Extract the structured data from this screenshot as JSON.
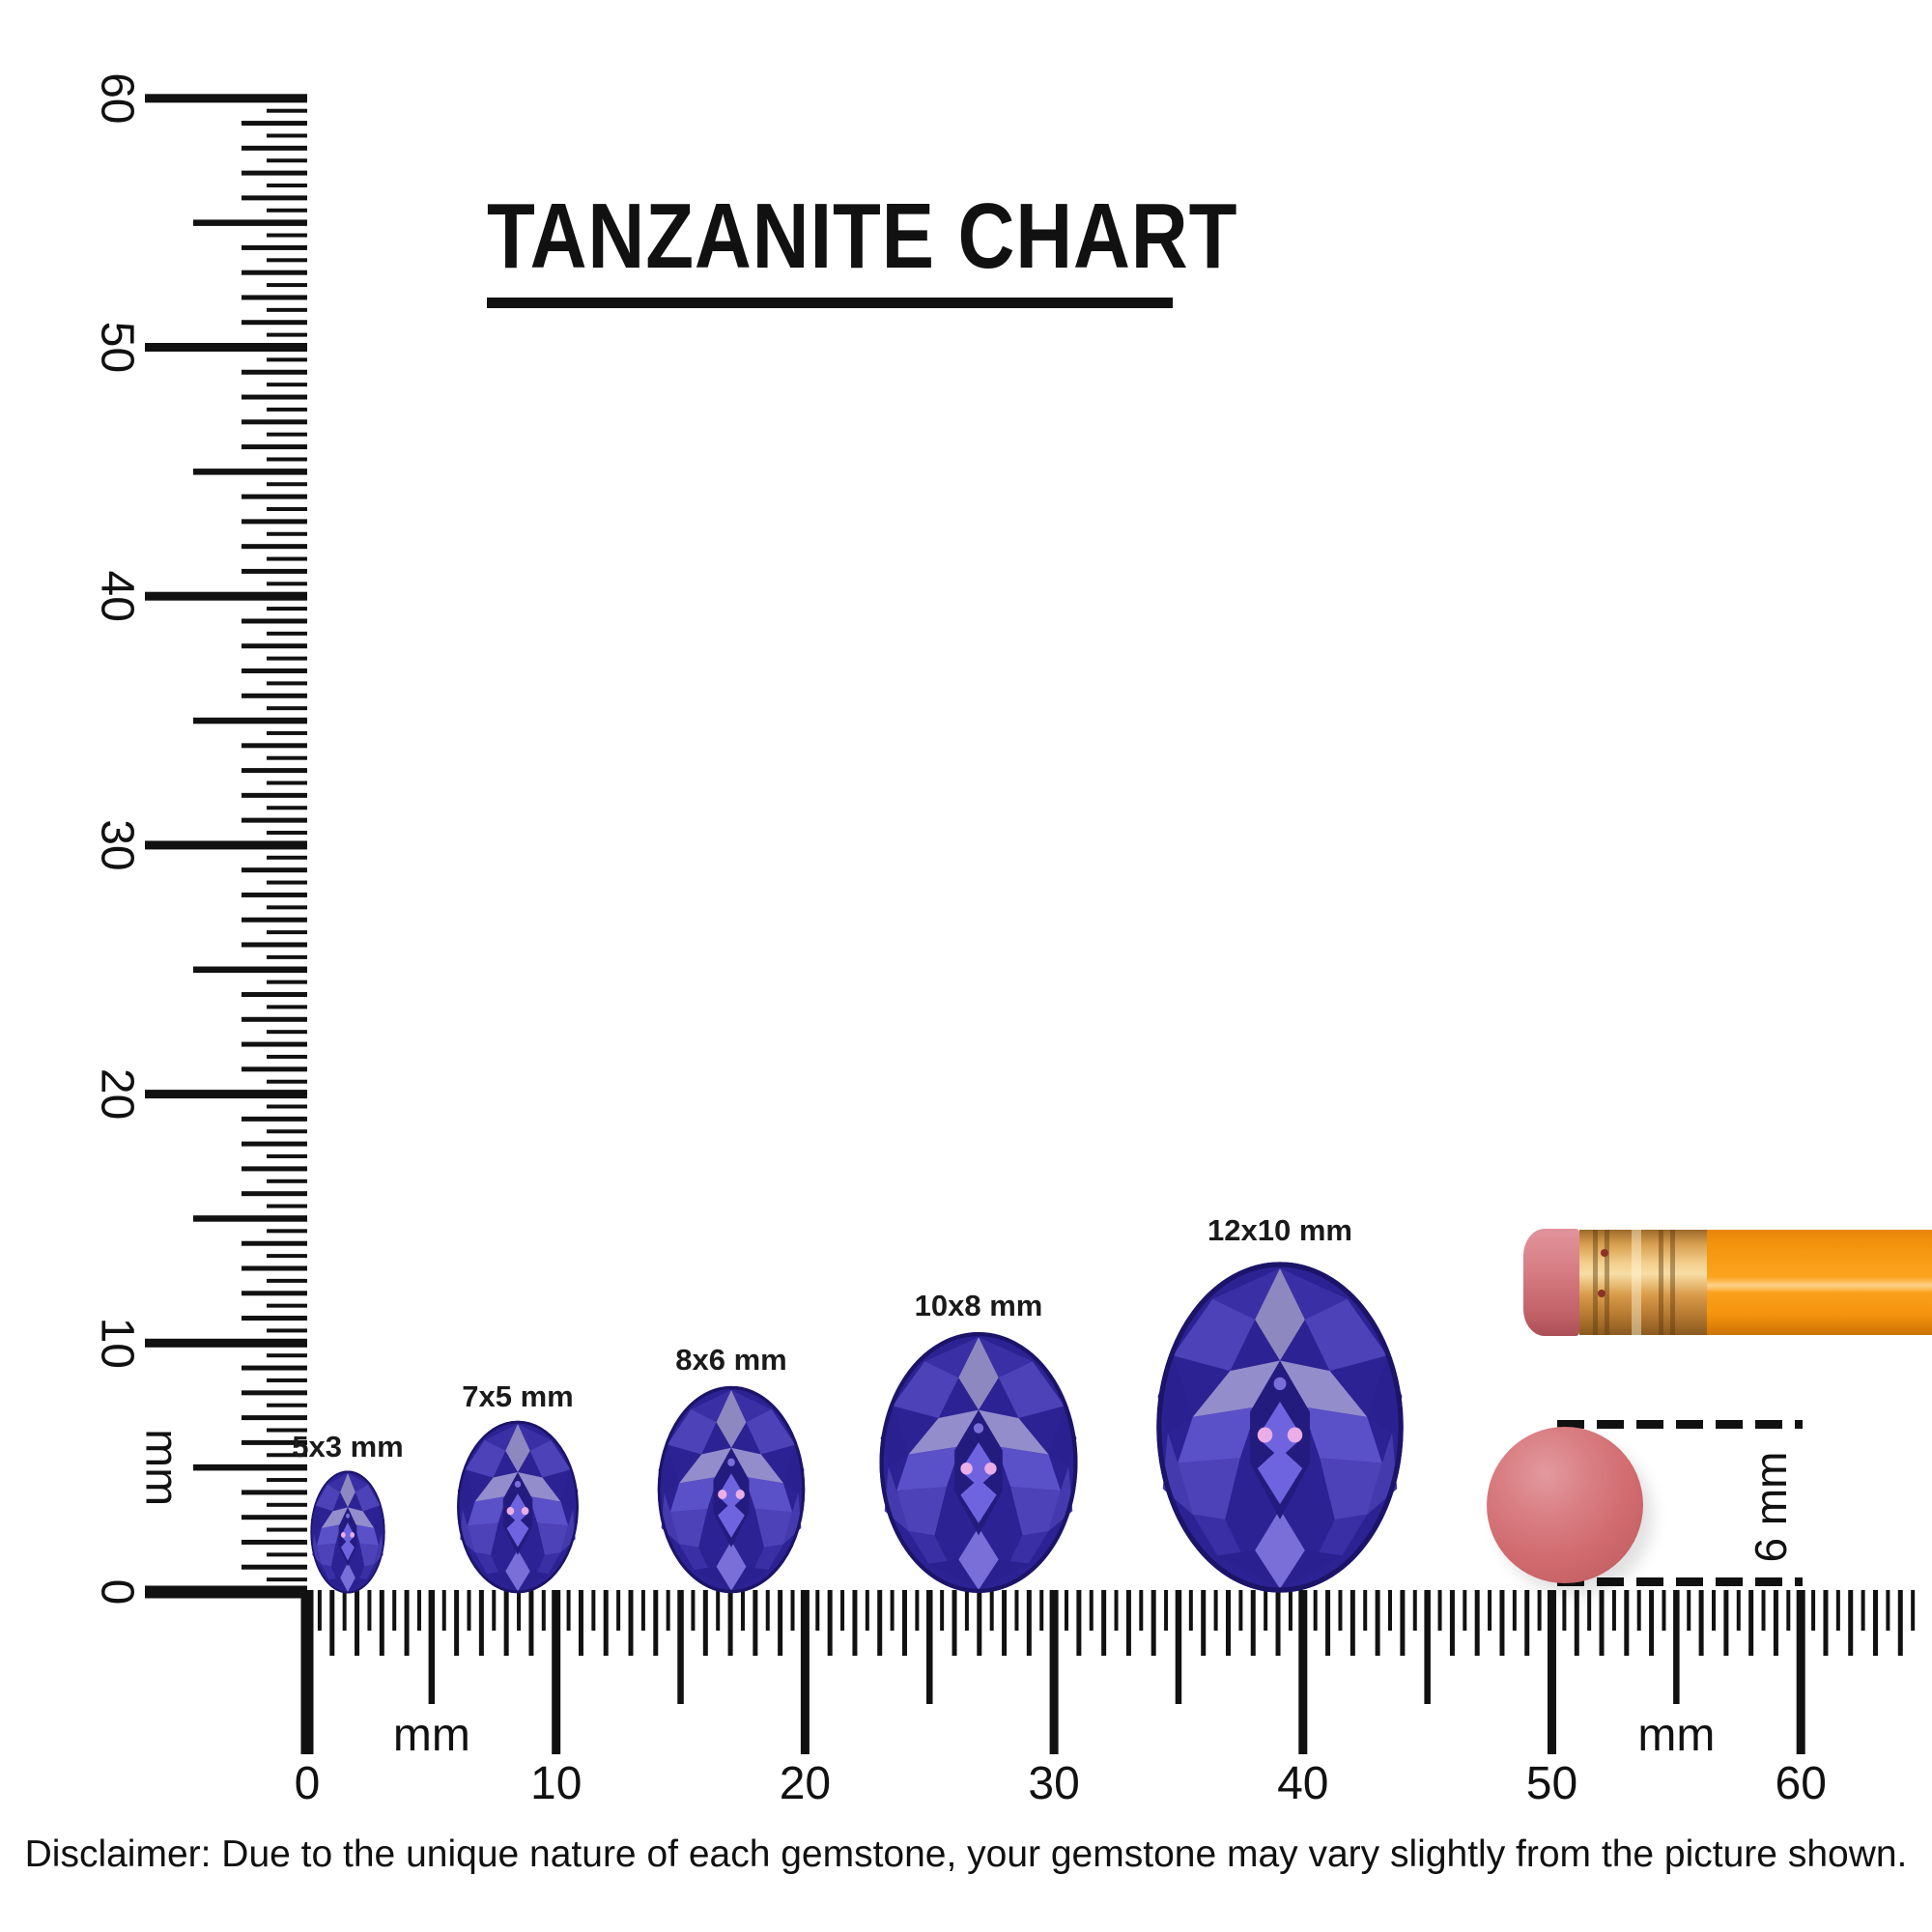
{
  "title": "TANZANITE CHART",
  "rulers": {
    "unit": "mm",
    "horizontal": {
      "label_values": [
        0,
        10,
        20,
        30,
        40,
        50,
        60
      ],
      "unit_label": "mm",
      "unit_positions_mm": [
        5,
        55
      ]
    },
    "vertical": {
      "label_values": [
        0,
        10,
        20,
        30,
        40,
        50,
        60
      ],
      "unit_label": "mm",
      "unit_positions_mm": [
        5
      ]
    }
  },
  "gems": [
    {
      "label": "5x3 mm",
      "length_mm": 5,
      "width_mm": 3
    },
    {
      "label": "7x5 mm",
      "length_mm": 7,
      "width_mm": 5
    },
    {
      "label": "8x6 mm",
      "length_mm": 8,
      "width_mm": 6
    },
    {
      "label": "10x8 mm",
      "length_mm": 10,
      "width_mm": 8
    },
    {
      "label": "12x10 mm",
      "length_mm": 12,
      "width_mm": 10
    }
  ],
  "reference_objects": {
    "pencil": {
      "name": "pencil"
    },
    "eraser_dot": {
      "label": "6 mm",
      "diameter_mm": 6
    }
  },
  "disclaimer": "Disclaimer: Due to the unique nature of each gemstone, your gemstone may vary slightly from the picture shown.",
  "colors": {
    "ink": "#111111",
    "gem-base": "#2c2293",
    "gem-rim": "#1c1468",
    "gem-dark": "#241b7e",
    "gem-deep": "#3a2fa5",
    "gem-deep2": "#2a2090",
    "gem-mid": "#443aae",
    "gem-mid2": "#4d42b8",
    "gem-bright": "#5a50c8",
    "gem-vivid": "#6f64e0",
    "gem-pale": "#948dcc",
    "gem-pale2": "#8e88c0",
    "gem-glow": "#7a6fd8",
    "gem-sparkle": "#e9aee6",
    "pencil-body": "#f5960f",
    "pencil-body-hl": "#ffd28a",
    "pencil-body-dark": "#c87404",
    "ferrule-light": "#f7dda4",
    "ferrule-gold": "#d99b4a",
    "ferrule-dark": "#8a5a20",
    "eraser-pink": "#e09098",
    "eraser-pink-dark": "#c05f66",
    "eraser-dot": "#d06a6e",
    "eraser-dot-dark": "#b95a60"
  }
}
